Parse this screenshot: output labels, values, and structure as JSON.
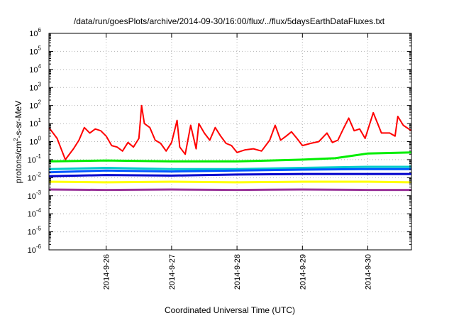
{
  "chart_data": {
    "type": "line",
    "title": "/data/run/goesPlots/archive/2014-09-30/16:00/flux/../flux/5daysEarthDataFluxes.txt",
    "xlabel": "Coordinated Universal Time (UTC)",
    "ylabel": {
      "prefix": "protons/cm",
      "sup": "2",
      "suffix": "-s-sr-MeV"
    },
    "xlim": [
      "2014-09-25T03:00",
      "2014-09-30T16:00"
    ],
    "ylim": [
      1e-06,
      1000000.0
    ],
    "yscale": "log",
    "grid": true,
    "x_ticks": [
      {
        "value": "2014-09-26T00:00",
        "label": "2014-9-26"
      },
      {
        "value": "2014-09-27T00:00",
        "label": "2014-9-27"
      },
      {
        "value": "2014-09-28T00:00",
        "label": "2014-9-28"
      },
      {
        "value": "2014-09-29T00:00",
        "label": "2014-9-29"
      },
      {
        "value": "2014-09-30T00:00",
        "label": "2014-9-30"
      }
    ],
    "y_ticks": [
      {
        "value": 1e-06,
        "base": "10",
        "exp": "-6"
      },
      {
        "value": 1e-05,
        "base": "10",
        "exp": "-5"
      },
      {
        "value": 0.0001,
        "base": "10",
        "exp": "-4"
      },
      {
        "value": 0.001,
        "base": "10",
        "exp": "-3"
      },
      {
        "value": 0.01,
        "base": "10",
        "exp": "-2"
      },
      {
        "value": 0.1,
        "base": "10",
        "exp": "-1"
      },
      {
        "value": 1,
        "base": "10",
        "exp": "0"
      },
      {
        "value": 10.0,
        "base": "10",
        "exp": "1"
      },
      {
        "value": 100.0,
        "base": "10",
        "exp": "2"
      },
      {
        "value": 1000.0,
        "base": "10",
        "exp": "3"
      },
      {
        "value": 10000.0,
        "base": "10",
        "exp": "4"
      },
      {
        "value": 100000.0,
        "base": "10",
        "exp": "5"
      },
      {
        "value": 1000000.0,
        "base": "10",
        "exp": "6"
      }
    ],
    "series": [
      {
        "color": "#ff0000",
        "x": [
          "2014-09-25T03:00",
          "2014-09-25T06:00",
          "2014-09-25T09:00",
          "2014-09-25T12:00",
          "2014-09-25T14:00",
          "2014-09-25T16:00",
          "2014-09-25T18:00",
          "2014-09-25T20:00",
          "2014-09-25T22:00",
          "2014-09-26T00:00",
          "2014-09-26T02:00",
          "2014-09-26T04:00",
          "2014-09-26T06:00",
          "2014-09-26T08:00",
          "2014-09-26T10:00",
          "2014-09-26T12:00",
          "2014-09-26T13:00",
          "2014-09-26T14:00",
          "2014-09-26T16:00",
          "2014-09-26T18:00",
          "2014-09-26T20:00",
          "2014-09-26T22:00",
          "2014-09-27T00:00",
          "2014-09-27T02:00",
          "2014-09-27T03:00",
          "2014-09-27T05:00",
          "2014-09-27T07:00",
          "2014-09-27T09:00",
          "2014-09-27T10:00",
          "2014-09-27T12:00",
          "2014-09-27T14:00",
          "2014-09-27T16:00",
          "2014-09-27T18:00",
          "2014-09-27T20:00",
          "2014-09-27T22:00",
          "2014-09-28T00:00",
          "2014-09-28T03:00",
          "2014-09-28T06:00",
          "2014-09-28T09:00",
          "2014-09-28T12:00",
          "2014-09-28T14:00",
          "2014-09-28T16:00",
          "2014-09-28T18:00",
          "2014-09-28T20:00",
          "2014-09-28T22:00",
          "2014-09-29T00:00",
          "2014-09-29T03:00",
          "2014-09-29T06:00",
          "2014-09-29T09:00",
          "2014-09-29T11:00",
          "2014-09-29T13:00",
          "2014-09-29T15:00",
          "2014-09-29T17:00",
          "2014-09-29T19:00",
          "2014-09-29T21:00",
          "2014-09-29T23:00",
          "2014-09-30T02:00",
          "2014-09-30T05:00",
          "2014-09-30T08:00",
          "2014-09-30T10:00",
          "2014-09-30T11:00",
          "2014-09-30T13:00",
          "2014-09-30T16:00"
        ],
        "values": [
          6,
          1.5,
          0.1,
          0.4,
          1.2,
          6,
          3,
          5,
          4,
          2,
          0.6,
          0.5,
          0.3,
          0.9,
          0.5,
          1.5,
          100,
          10,
          6,
          1.2,
          0.8,
          0.3,
          0.9,
          15,
          0.5,
          0.2,
          8,
          0.4,
          10,
          3,
          1.2,
          6,
          2,
          0.8,
          0.6,
          0.25,
          0.35,
          0.4,
          0.3,
          1.2,
          8,
          1.2,
          2,
          3.5,
          1.5,
          0.6,
          0.8,
          1,
          3,
          0.9,
          1.2,
          5,
          20,
          4,
          5,
          1.5,
          40,
          3,
          3,
          2,
          25,
          8,
          4
        ]
      },
      {
        "color": "#00ee00",
        "x": [
          "2014-09-25T03:00",
          "2014-09-26T00:00",
          "2014-09-27T00:00",
          "2014-09-28T00:00",
          "2014-09-29T00:00",
          "2014-09-29T12:00",
          "2014-09-30T00:00",
          "2014-09-30T16:00"
        ],
        "values": [
          0.08,
          0.09,
          0.08,
          0.08,
          0.1,
          0.12,
          0.22,
          0.25
        ]
      },
      {
        "color": "#00cccc",
        "x": [
          "2014-09-25T03:00",
          "2014-09-26T00:00",
          "2014-09-27T00:00",
          "2014-09-28T00:00",
          "2014-09-29T00:00",
          "2014-09-30T00:00",
          "2014-09-30T16:00"
        ],
        "values": [
          0.03,
          0.035,
          0.03,
          0.03,
          0.035,
          0.04,
          0.04
        ]
      },
      {
        "color": "#0055ff",
        "x": [
          "2014-09-25T03:00",
          "2014-09-26T00:00",
          "2014-09-27T00:00",
          "2014-09-28T00:00",
          "2014-09-29T00:00",
          "2014-09-30T00:00",
          "2014-09-30T16:00"
        ],
        "values": [
          0.02,
          0.025,
          0.022,
          0.025,
          0.028,
          0.03,
          0.03
        ]
      },
      {
        "color": "#0000cc",
        "x": [
          "2014-09-25T03:00",
          "2014-09-26T00:00",
          "2014-09-27T00:00",
          "2014-09-28T00:00",
          "2014-09-29T00:00",
          "2014-09-30T00:00",
          "2014-09-30T16:00"
        ],
        "values": [
          0.012,
          0.014,
          0.013,
          0.015,
          0.016,
          0.016,
          0.016
        ]
      },
      {
        "color": "#ffff00",
        "x": [
          "2014-09-25T03:00",
          "2014-09-26T00:00",
          "2014-09-27T00:00",
          "2014-09-28T00:00",
          "2014-09-29T00:00",
          "2014-09-30T00:00",
          "2014-09-30T16:00"
        ],
        "values": [
          0.006,
          0.0055,
          0.006,
          0.0055,
          0.006,
          0.006,
          0.0055
        ]
      },
      {
        "color": "#993399",
        "x": [
          "2014-09-25T03:00",
          "2014-09-26T00:00",
          "2014-09-27T00:00",
          "2014-09-28T00:00",
          "2014-09-29T00:00",
          "2014-09-30T00:00",
          "2014-09-30T16:00"
        ],
        "values": [
          0.0022,
          0.0021,
          0.0022,
          0.0021,
          0.0022,
          0.0021,
          0.0021
        ]
      }
    ]
  }
}
